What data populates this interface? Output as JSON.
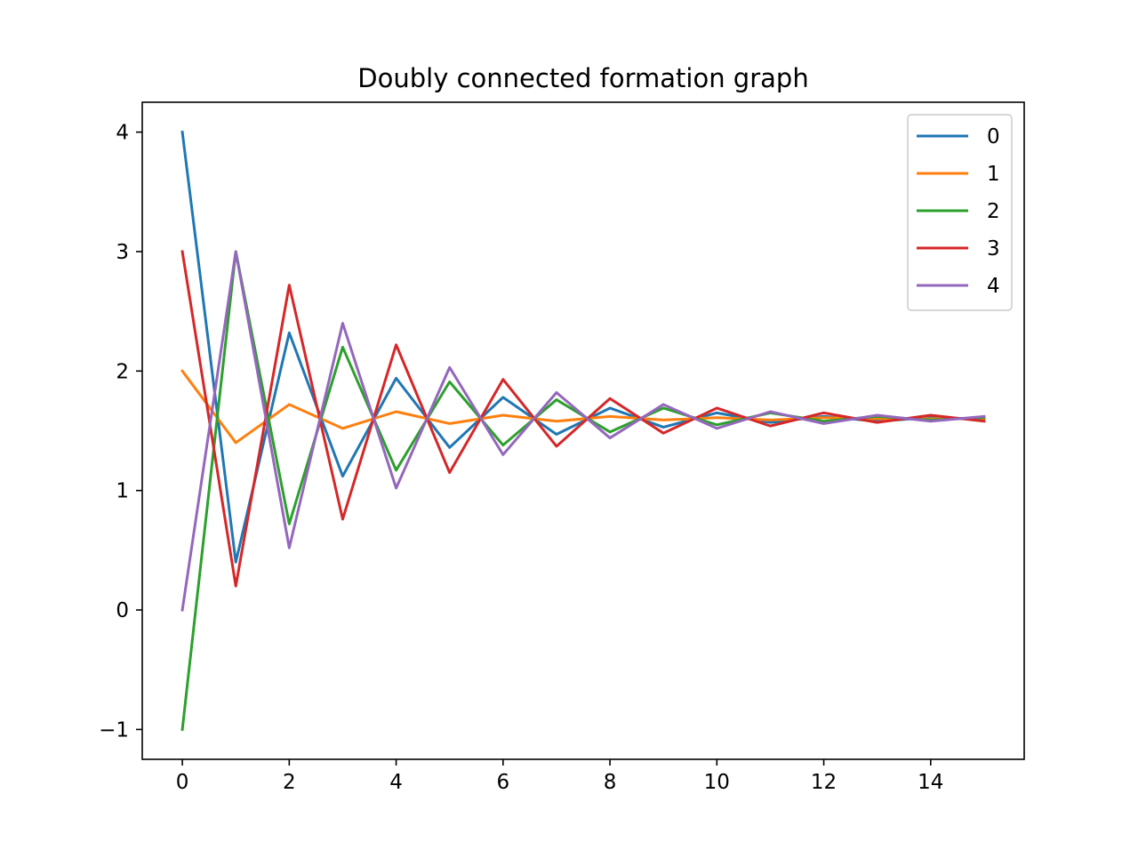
{
  "chart_data": {
    "type": "line",
    "title": "Doubly connected formation graph",
    "xlabel": "",
    "ylabel": "",
    "xlim": [
      -0.75,
      15.75
    ],
    "ylim": [
      -1.25,
      4.25
    ],
    "grid": false,
    "legend": {
      "placement": "upper right"
    },
    "xticks": [
      0,
      2,
      4,
      6,
      8,
      10,
      12,
      14
    ],
    "xtick_labels": [
      "0",
      "2",
      "4",
      "6",
      "8",
      "10",
      "12",
      "14"
    ],
    "yticks": [
      -1,
      0,
      1,
      2,
      3,
      4
    ],
    "ytick_labels": [
      "−1",
      "0",
      "1",
      "2",
      "3",
      "4"
    ],
    "x": [
      0,
      1,
      2,
      3,
      4,
      5,
      6,
      7,
      8,
      9,
      10,
      11,
      12,
      13,
      14,
      15
    ],
    "series": [
      {
        "name": "0",
        "color": "#1f77b4",
        "values": [
          4,
          0.4,
          2.32,
          1.12,
          1.94,
          1.36,
          1.78,
          1.47,
          1.69,
          1.53,
          1.65,
          1.57,
          1.62,
          1.58,
          1.61,
          1.6
        ]
      },
      {
        "name": "1",
        "color": "#ff7f0e",
        "values": [
          2,
          1.4,
          1.72,
          1.52,
          1.66,
          1.56,
          1.63,
          1.58,
          1.62,
          1.59,
          1.61,
          1.59,
          1.61,
          1.6,
          1.6,
          1.6
        ]
      },
      {
        "name": "2",
        "color": "#2ca02c",
        "values": [
          -1,
          3,
          0.72,
          2.2,
          1.17,
          1.91,
          1.38,
          1.76,
          1.49,
          1.69,
          1.55,
          1.65,
          1.58,
          1.62,
          1.59,
          1.61
        ]
      },
      {
        "name": "3",
        "color": "#d62728",
        "values": [
          3,
          0.2,
          2.72,
          0.76,
          2.22,
          1.15,
          1.93,
          1.37,
          1.77,
          1.48,
          1.69,
          1.54,
          1.65,
          1.57,
          1.63,
          1.58
        ]
      },
      {
        "name": "4",
        "color": "#9467bd",
        "values": [
          0,
          3,
          0.52,
          2.4,
          1.02,
          2.03,
          1.3,
          1.82,
          1.44,
          1.72,
          1.52,
          1.66,
          1.56,
          1.63,
          1.58,
          1.62
        ]
      }
    ]
  }
}
